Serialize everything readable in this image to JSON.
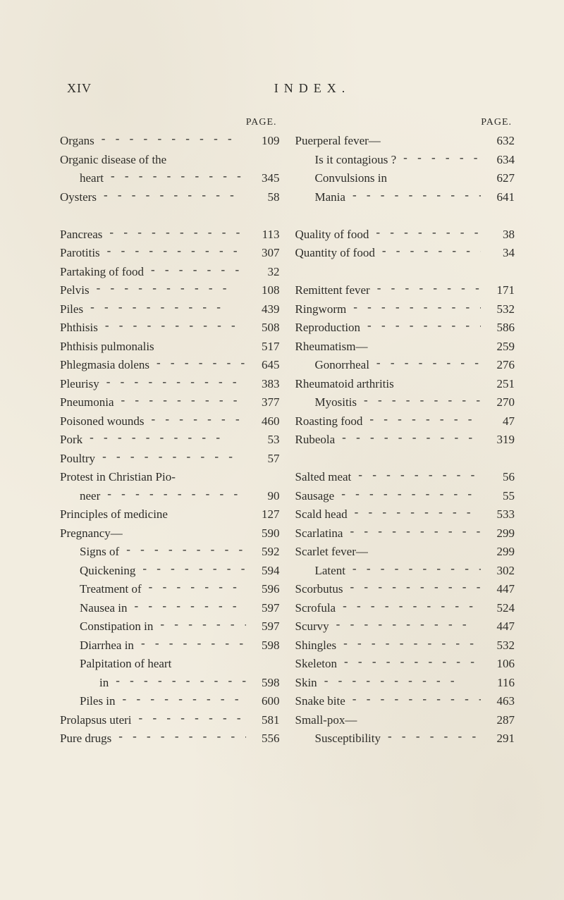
{
  "header": {
    "roman": "XIV",
    "title": "INDEX.",
    "page_label": "PAGE."
  },
  "left": [
    {
      "label": "Organs",
      "page": "109",
      "indent": 0,
      "dash": true
    },
    {
      "label": "Organic disease of the",
      "page": "",
      "indent": 0,
      "dash": false
    },
    {
      "label": "heart",
      "page": "345",
      "indent": 1,
      "dash": true
    },
    {
      "label": "Oysters",
      "page": "58",
      "indent": 0,
      "dash": true
    },
    {
      "label": "",
      "page": "",
      "indent": 0,
      "dash": false,
      "blank": true
    },
    {
      "label": "Pancreas",
      "page": "113",
      "indent": 0,
      "dash": true
    },
    {
      "label": "Parotitis",
      "page": "307",
      "indent": 0,
      "dash": true
    },
    {
      "label": "Partaking of food",
      "page": "32",
      "indent": 0,
      "dash": true
    },
    {
      "label": "Pelvis",
      "page": "108",
      "indent": 0,
      "dash": true
    },
    {
      "label": "Piles",
      "page": "439",
      "indent": 0,
      "dash": true
    },
    {
      "label": "Phthisis",
      "page": "508",
      "indent": 0,
      "dash": true
    },
    {
      "label": "Phthisis pulmonalis",
      "page": "517",
      "indent": 0,
      "dash": false
    },
    {
      "label": "Phlegmasia dolens",
      "page": "645",
      "indent": 0,
      "dash": true
    },
    {
      "label": "Pleurisy",
      "page": "383",
      "indent": 0,
      "dash": true
    },
    {
      "label": "Pneumonia",
      "page": "377",
      "indent": 0,
      "dash": true
    },
    {
      "label": "Poisoned wounds",
      "page": "460",
      "indent": 0,
      "dash": true
    },
    {
      "label": "Pork",
      "page": "53",
      "indent": 0,
      "dash": true
    },
    {
      "label": "Poultry",
      "page": "57",
      "indent": 0,
      "dash": true
    },
    {
      "label": "Protest in Christian Pio-",
      "page": "",
      "indent": 0,
      "dash": false
    },
    {
      "label": "neer",
      "page": "90",
      "indent": 1,
      "dash": true
    },
    {
      "label": "Principles of medicine",
      "page": "127",
      "indent": 0,
      "dash": false
    },
    {
      "label": "Pregnancy—",
      "page": "590",
      "indent": 0,
      "dash": false
    },
    {
      "label": "Signs of",
      "page": "592",
      "indent": 1,
      "dash": true
    },
    {
      "label": "Quickening",
      "page": "594",
      "indent": 1,
      "dash": true
    },
    {
      "label": "Treatment of",
      "page": "596",
      "indent": 1,
      "dash": true
    },
    {
      "label": "Nausea in",
      "page": "597",
      "indent": 1,
      "dash": true
    },
    {
      "label": "Constipation in",
      "page": "597",
      "indent": 1,
      "dash": true
    },
    {
      "label": "Diarrhea in",
      "page": "598",
      "indent": 1,
      "dash": true
    },
    {
      "label": "Palpitation of heart",
      "page": "",
      "indent": 1,
      "dash": false
    },
    {
      "label": "in",
      "page": "598",
      "indent": 2,
      "dash": true
    },
    {
      "label": "Piles in",
      "page": "600",
      "indent": 1,
      "dash": true
    },
    {
      "label": "Prolapsus uteri",
      "page": "581",
      "indent": 0,
      "dash": true
    },
    {
      "label": "Pure drugs",
      "page": "556",
      "indent": 0,
      "dash": true
    }
  ],
  "right": [
    {
      "label": "Puerperal fever—",
      "page": "632",
      "indent": 0,
      "dash": false
    },
    {
      "label": "Is it contagious ?",
      "page": "634",
      "indent": 1,
      "dash": true
    },
    {
      "label": "Convulsions in",
      "page": "627",
      "indent": 1,
      "dash": false
    },
    {
      "label": "Mania",
      "page": "641",
      "indent": 1,
      "dash": true
    },
    {
      "label": "",
      "page": "",
      "indent": 0,
      "dash": false,
      "blank": true
    },
    {
      "label": "Quality of food",
      "page": "38",
      "indent": 0,
      "dash": true
    },
    {
      "label": "Quantity of food",
      "page": "34",
      "indent": 0,
      "dash": true
    },
    {
      "label": "",
      "page": "",
      "indent": 0,
      "dash": false,
      "blank": true
    },
    {
      "label": "Remittent fever",
      "page": "171",
      "indent": 0,
      "dash": true
    },
    {
      "label": "Ringworm",
      "page": "532",
      "indent": 0,
      "dash": true
    },
    {
      "label": "Reproduction",
      "page": "586",
      "indent": 0,
      "dash": true
    },
    {
      "label": "Rheumatism—",
      "page": "259",
      "indent": 0,
      "dash": false
    },
    {
      "label": "Gonorrheal",
      "page": "276",
      "indent": 1,
      "dash": true
    },
    {
      "label": "Rheumatoid arthritis",
      "page": "251",
      "indent": 0,
      "dash": false
    },
    {
      "label": "Myositis",
      "page": "270",
      "indent": 1,
      "dash": true
    },
    {
      "label": "Roasting food",
      "page": "47",
      "indent": 0,
      "dash": true
    },
    {
      "label": "Rubeola",
      "page": "319",
      "indent": 0,
      "dash": true
    },
    {
      "label": "",
      "page": "",
      "indent": 0,
      "dash": false,
      "blank": true
    },
    {
      "label": "Salted meat",
      "page": "56",
      "indent": 0,
      "dash": true
    },
    {
      "label": "Sausage",
      "page": "55",
      "indent": 0,
      "dash": true
    },
    {
      "label": "Scald head",
      "page": "533",
      "indent": 0,
      "dash": true
    },
    {
      "label": "Scarlatina",
      "page": "299",
      "indent": 0,
      "dash": true
    },
    {
      "label": "Scarlet fever—",
      "page": "299",
      "indent": 0,
      "dash": false
    },
    {
      "label": "Latent",
      "page": "302",
      "indent": 1,
      "dash": true
    },
    {
      "label": "Scorbutus",
      "page": "447",
      "indent": 0,
      "dash": true
    },
    {
      "label": "Scrofula",
      "page": "524",
      "indent": 0,
      "dash": true
    },
    {
      "label": "Scurvy",
      "page": "447",
      "indent": 0,
      "dash": true
    },
    {
      "label": "Shingles",
      "page": "532",
      "indent": 0,
      "dash": true
    },
    {
      "label": "Skeleton",
      "page": "106",
      "indent": 0,
      "dash": true
    },
    {
      "label": "Skin",
      "page": "116",
      "indent": 0,
      "dash": true
    },
    {
      "label": "Snake bite",
      "page": "463",
      "indent": 0,
      "dash": true
    },
    {
      "label": "Small-pox—",
      "page": "287",
      "indent": 0,
      "dash": false
    },
    {
      "label": "Susceptibility",
      "page": "291",
      "indent": 1,
      "dash": true
    }
  ]
}
